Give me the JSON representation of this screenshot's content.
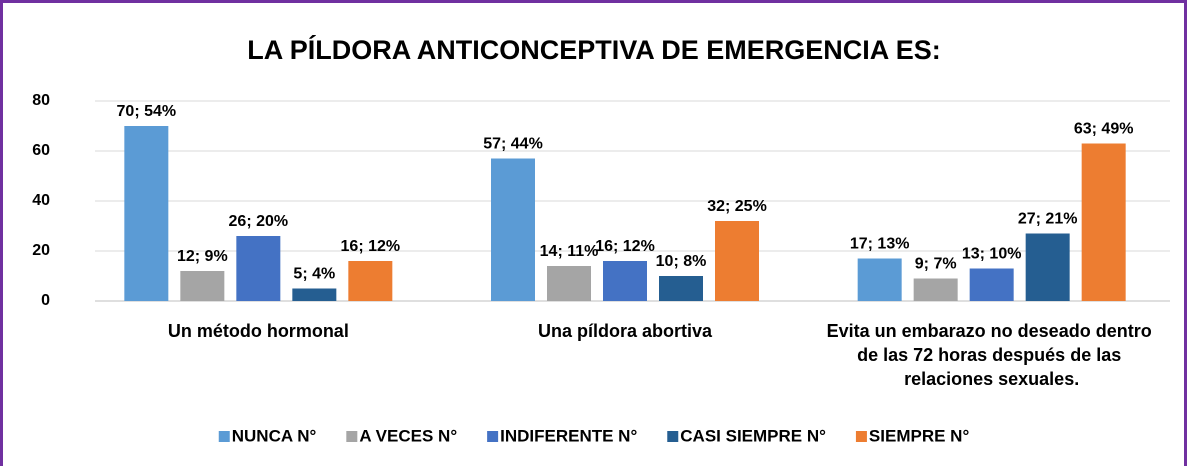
{
  "chart_data": {
    "type": "bar",
    "title": "LA PÍLDORA ANTICONCEPTIVA DE EMERGENCIA ES:",
    "categories": [
      "Un método hormonal",
      "Una píldora abortiva",
      "Evita un embarazo no deseado dentro de las 72 horas después de las relaciones sexuales."
    ],
    "series": [
      {
        "name": "NUNCA N°",
        "color": "#5b9bd5",
        "values": [
          70,
          57,
          17
        ],
        "value_labels": [
          "70; 54%",
          "57; 44%",
          "17; 13%"
        ]
      },
      {
        "name": "A VECES N°",
        "color": "#a5a5a5",
        "values": [
          12,
          14,
          9
        ],
        "value_labels": [
          "12; 9%",
          "14; 11%",
          "9; 7%"
        ]
      },
      {
        "name": "INDIFERENTE N°",
        "color": "#4472c4",
        "values": [
          26,
          16,
          13
        ],
        "value_labels": [
          "26; 20%",
          "16; 12%",
          "13; 10%"
        ]
      },
      {
        "name": "CASI SIEMPRE N°",
        "color": "#255e91",
        "values": [
          5,
          10,
          27
        ],
        "value_labels": [
          "5; 4%",
          "10; 8%",
          "27; 21%"
        ]
      },
      {
        "name": "SIEMPRE N°",
        "color": "#ed7d31",
        "values": [
          16,
          32,
          63
        ],
        "value_labels": [
          "16; 12%",
          "32; 25%",
          "63; 49%"
        ]
      }
    ],
    "ylim": [
      0,
      80
    ],
    "yticks": [
      0,
      20,
      40,
      60,
      80
    ],
    "grid": true,
    "legend": "bottom"
  }
}
